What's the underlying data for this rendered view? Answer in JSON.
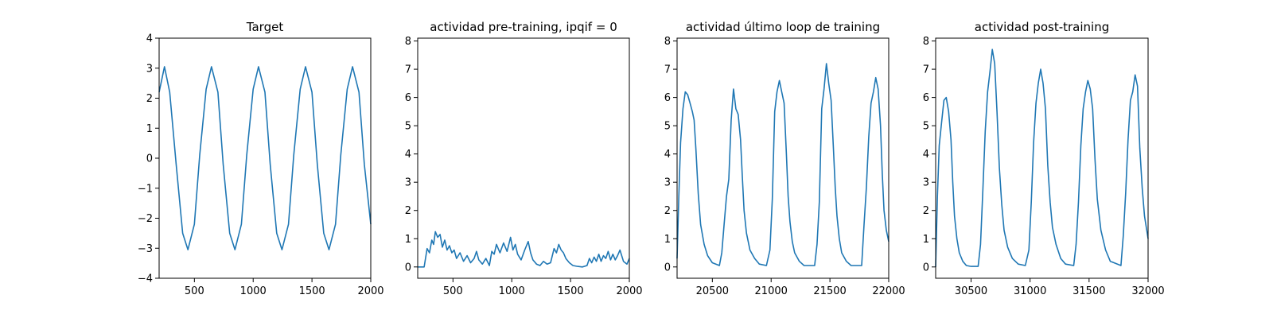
{
  "chart_data": [
    {
      "type": "line",
      "title": "Target",
      "xlim": [
        200,
        2000
      ],
      "ylim": [
        -4,
        4
      ],
      "xticks": [
        "500",
        "1000",
        "1500",
        "2000"
      ],
      "yticks": [
        "−4",
        "−3",
        "−2",
        "−1",
        "0",
        "1",
        "2",
        "3",
        "4"
      ],
      "xtick_values": [
        500,
        1000,
        1500,
        2000
      ],
      "ytick_values": [
        -4,
        -3,
        -2,
        -1,
        0,
        1,
        2,
        3,
        4
      ],
      "series": [
        {
          "color": "#1f77b4",
          "x": [
            200,
            245,
            290,
            345,
            400,
            445,
            500,
            545,
            600,
            645,
            700,
            745,
            800,
            845,
            900,
            945,
            1000,
            1045,
            1100,
            1145,
            1200,
            1245,
            1300,
            1345,
            1400,
            1445,
            1500,
            1545,
            1600,
            1645,
            1700,
            1745,
            1800,
            1845,
            1900,
            1945,
            2000
          ],
          "y": [
            2.2,
            3.05,
            2.2,
            -0.2,
            -2.5,
            -3.05,
            -2.2,
            0.1,
            2.3,
            3.05,
            2.2,
            -0.2,
            -2.5,
            -3.05,
            -2.2,
            0.1,
            2.3,
            3.05,
            2.2,
            -0.2,
            -2.5,
            -3.05,
            -2.2,
            0.1,
            2.3,
            3.05,
            2.2,
            -0.2,
            -2.5,
            -3.05,
            -2.2,
            0.1,
            2.3,
            3.05,
            2.2,
            -0.2,
            -2.2
          ]
        }
      ]
    },
    {
      "type": "line",
      "title": "actividad pre-training, ipqif = 0",
      "xlim": [
        200,
        2000
      ],
      "ylim": [
        -0.4,
        8.1
      ],
      "xticks": [
        "500",
        "1000",
        "1500",
        "2000"
      ],
      "yticks": [
        "0",
        "1",
        "2",
        "3",
        "4",
        "5",
        "6",
        "7",
        "8"
      ],
      "xtick_values": [
        500,
        1000,
        1500,
        2000
      ],
      "ytick_values": [
        0,
        1,
        2,
        3,
        4,
        5,
        6,
        7,
        8
      ],
      "series": [
        {
          "color": "#1f77b4",
          "x": [
            200,
            250,
            255,
            280,
            300,
            320,
            335,
            350,
            370,
            390,
            410,
            430,
            450,
            470,
            490,
            510,
            530,
            560,
            590,
            620,
            650,
            680,
            700,
            720,
            750,
            780,
            810,
            830,
            850,
            870,
            900,
            930,
            960,
            990,
            1010,
            1030,
            1050,
            1080,
            1110,
            1140,
            1160,
            1180,
            1210,
            1240,
            1270,
            1300,
            1330,
            1360,
            1380,
            1400,
            1420,
            1440,
            1460,
            1490,
            1520,
            1560,
            1600,
            1640,
            1660,
            1680,
            1700,
            1720,
            1740,
            1760,
            1780,
            1800,
            1820,
            1840,
            1860,
            1880,
            1900,
            1920,
            1950,
            1980,
            2000
          ],
          "y": [
            0,
            0,
            0,
            0.65,
            0.5,
            0.95,
            0.8,
            1.25,
            1.05,
            1.15,
            0.7,
            0.95,
            0.6,
            0.75,
            0.5,
            0.6,
            0.3,
            0.5,
            0.2,
            0.4,
            0.15,
            0.3,
            0.55,
            0.25,
            0.1,
            0.3,
            0.05,
            0.55,
            0.45,
            0.8,
            0.5,
            0.85,
            0.55,
            1.05,
            0.6,
            0.8,
            0.45,
            0.25,
            0.6,
            0.9,
            0.5,
            0.25,
            0.1,
            0.05,
            0.2,
            0.1,
            0.15,
            0.65,
            0.5,
            0.8,
            0.6,
            0.5,
            0.3,
            0.15,
            0.05,
            0.02,
            0,
            0.05,
            0.3,
            0.15,
            0.35,
            0.2,
            0.45,
            0.2,
            0.4,
            0.3,
            0.55,
            0.25,
            0.45,
            0.25,
            0.4,
            0.6,
            0.2,
            0.1,
            0.3
          ]
        }
      ]
    },
    {
      "type": "line",
      "title": "actividad último loop de training",
      "xlim": [
        20200,
        22000
      ],
      "ylim": [
        -0.4,
        8.1
      ],
      "xticks": [
        "20500",
        "21000",
        "21500",
        "22000"
      ],
      "yticks": [
        "0",
        "1",
        "2",
        "3",
        "4",
        "5",
        "6",
        "7",
        "8"
      ],
      "xtick_values": [
        20500,
        21000,
        21500,
        22000
      ],
      "ytick_values": [
        0,
        1,
        2,
        3,
        4,
        5,
        6,
        7,
        8
      ],
      "series": [
        {
          "color": "#1f77b4",
          "x": [
            20200,
            20215,
            20230,
            20250,
            20270,
            20290,
            20310,
            20330,
            20345,
            20360,
            20380,
            20400,
            20430,
            20460,
            20500,
            20560,
            20580,
            20600,
            20620,
            20640,
            20660,
            20680,
            20700,
            20720,
            20740,
            20755,
            20770,
            20790,
            20820,
            20860,
            20900,
            20960,
            20990,
            21010,
            21030,
            21050,
            21070,
            21090,
            21110,
            21130,
            21145,
            21160,
            21180,
            21200,
            21240,
            21280,
            21320,
            21370,
            21390,
            21410,
            21430,
            21450,
            21470,
            21490,
            21510,
            21530,
            21545,
            21560,
            21580,
            21600,
            21640,
            21680,
            21720,
            21770,
            21790,
            21810,
            21830,
            21850,
            21870,
            21890,
            21910,
            21930,
            21945,
            21960,
            21980,
            22000
          ],
          "y": [
            0.3,
            2.5,
            4.4,
            5.6,
            6.2,
            6.1,
            5.8,
            5.5,
            5.2,
            4.2,
            2.6,
            1.5,
            0.8,
            0.4,
            0.15,
            0.05,
            0.5,
            1.5,
            2.5,
            3.1,
            5.2,
            6.3,
            5.6,
            5.4,
            4.5,
            3.2,
            2.0,
            1.2,
            0.6,
            0.3,
            0.1,
            0.05,
            0.6,
            2.4,
            5.5,
            6.2,
            6.6,
            6.2,
            5.8,
            4.0,
            2.5,
            1.6,
            0.9,
            0.5,
            0.2,
            0.05,
            0.05,
            0.05,
            0.8,
            2.3,
            5.6,
            6.3,
            7.2,
            6.5,
            5.9,
            4.2,
            2.8,
            1.8,
            1.0,
            0.5,
            0.2,
            0.05,
            0.05,
            0.05,
            1.5,
            2.8,
            4.6,
            5.8,
            6.2,
            6.7,
            6.3,
            5.0,
            3.3,
            2.0,
            1.3,
            0.9
          ]
        }
      ]
    },
    {
      "type": "line",
      "title": "actividad post-training",
      "xlim": [
        30200,
        32000
      ],
      "ylim": [
        -0.4,
        8.1
      ],
      "xticks": [
        "30500",
        "31000",
        "31500",
        "32000"
      ],
      "yticks": [
        "0",
        "1",
        "2",
        "3",
        "4",
        "5",
        "6",
        "7",
        "8"
      ],
      "xtick_values": [
        30500,
        31000,
        31500,
        32000
      ],
      "ytick_values": [
        0,
        1,
        2,
        3,
        4,
        5,
        6,
        7,
        8
      ],
      "series": [
        {
          "color": "#1f77b4",
          "x": [
            30200,
            30215,
            30230,
            30250,
            30270,
            30290,
            30310,
            30330,
            30345,
            30360,
            30380,
            30400,
            30430,
            30460,
            30500,
            30560,
            30580,
            30600,
            30620,
            30640,
            30660,
            30680,
            30700,
            30720,
            30740,
            30760,
            30780,
            30810,
            30850,
            30900,
            30960,
            30990,
            31010,
            31030,
            31050,
            31070,
            31090,
            31110,
            31130,
            31150,
            31170,
            31190,
            31220,
            31260,
            31300,
            31370,
            31390,
            31410,
            31430,
            31450,
            31470,
            31490,
            31510,
            31530,
            31550,
            31570,
            31600,
            31640,
            31680,
            31770,
            31790,
            31810,
            31830,
            31850,
            31870,
            31890,
            31910,
            31930,
            31950,
            31970,
            32000
          ],
          "y": [
            0,
            2.5,
            4.3,
            5.1,
            5.9,
            6.0,
            5.5,
            4.5,
            3.0,
            1.8,
            1.0,
            0.5,
            0.2,
            0.05,
            0.02,
            0.02,
            0.8,
            2.7,
            4.8,
            6.2,
            6.9,
            7.7,
            7.2,
            5.5,
            3.5,
            2.2,
            1.3,
            0.7,
            0.3,
            0.1,
            0.05,
            0.6,
            2.3,
            4.4,
            5.8,
            6.5,
            7.0,
            6.5,
            5.6,
            3.6,
            2.3,
            1.4,
            0.8,
            0.3,
            0.1,
            0.05,
            0.8,
            2.3,
            4.3,
            5.6,
            6.2,
            6.6,
            6.3,
            5.6,
            3.8,
            2.4,
            1.3,
            0.6,
            0.2,
            0.05,
            1.1,
            2.6,
            4.5,
            5.9,
            6.2,
            6.8,
            6.4,
            4.2,
            2.8,
            1.8,
            1.0
          ]
        }
      ]
    }
  ]
}
